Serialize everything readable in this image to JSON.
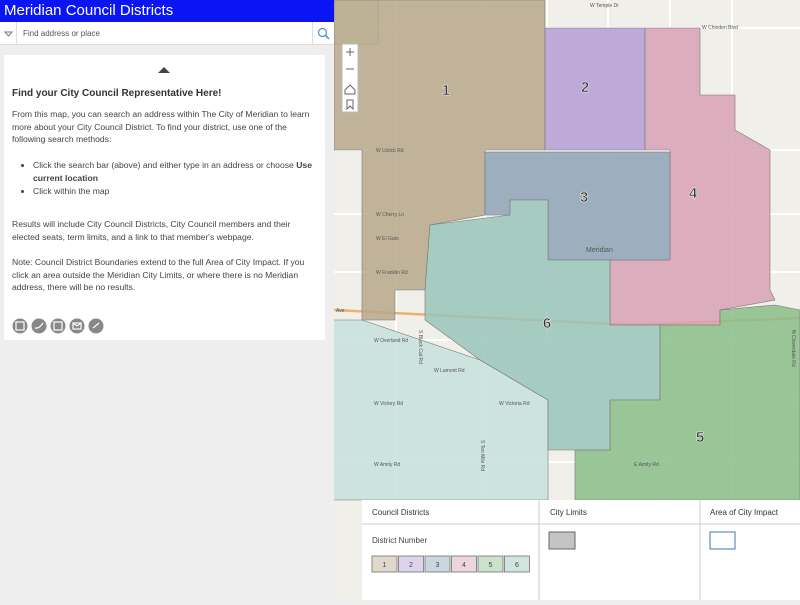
{
  "header": {
    "title": "Meridian Council Districts"
  },
  "search": {
    "placeholder": "Find address or place"
  },
  "panel": {
    "heading": "Find your City Council Representative Here!",
    "intro": "From this map, you can search an address within The City of Meridian to learn more about your City Council District.  To find your district, use one of the following search methods:",
    "methods": [
      {
        "text": "Click the search bar (above) and either type in an address or choose ",
        "bold": "Use current location"
      },
      {
        "text": "Click within the map"
      }
    ],
    "results": "Results will include City Council Districts, City Council members and their elected seats, term limits, and a link to that member's webpage.",
    "note": "Note: Council District Boundaries extend to the full Area of City Impact.   If you click an area outside the Meridian City Limits, or where there is no Meridian address, there will be no results."
  },
  "map": {
    "districts": [
      {
        "label": "1",
        "color": "#b8a88c"
      },
      {
        "label": "2",
        "color": "#b49ed6"
      },
      {
        "label": "3",
        "color": "#8ea3b6"
      },
      {
        "label": "4",
        "color": "#d7a1b5"
      },
      {
        "label": "5",
        "color": "#8bbd88"
      },
      {
        "label": "6",
        "color": "#99c5ba"
      }
    ],
    "streets": [
      "W Ustick Rd",
      "W Cherry Ln",
      "W El Gato",
      "W Franklin Rd",
      "W Overland Rd",
      "W Lamont Rd",
      "W Victory Rd",
      "W Victoria Rd",
      "W Amity Rd",
      "E Amity Rd",
      "W Chinden Blvd",
      "W Temple Dr",
      "Meridian",
      "S Ten Mile Rd",
      "S Black Cat Rd",
      "N Cloverdale Rd",
      "Ave"
    ]
  },
  "legend": {
    "headers": [
      "Council Districts",
      "City Limits",
      "Area of City Impact"
    ],
    "district_number": "District Number"
  }
}
